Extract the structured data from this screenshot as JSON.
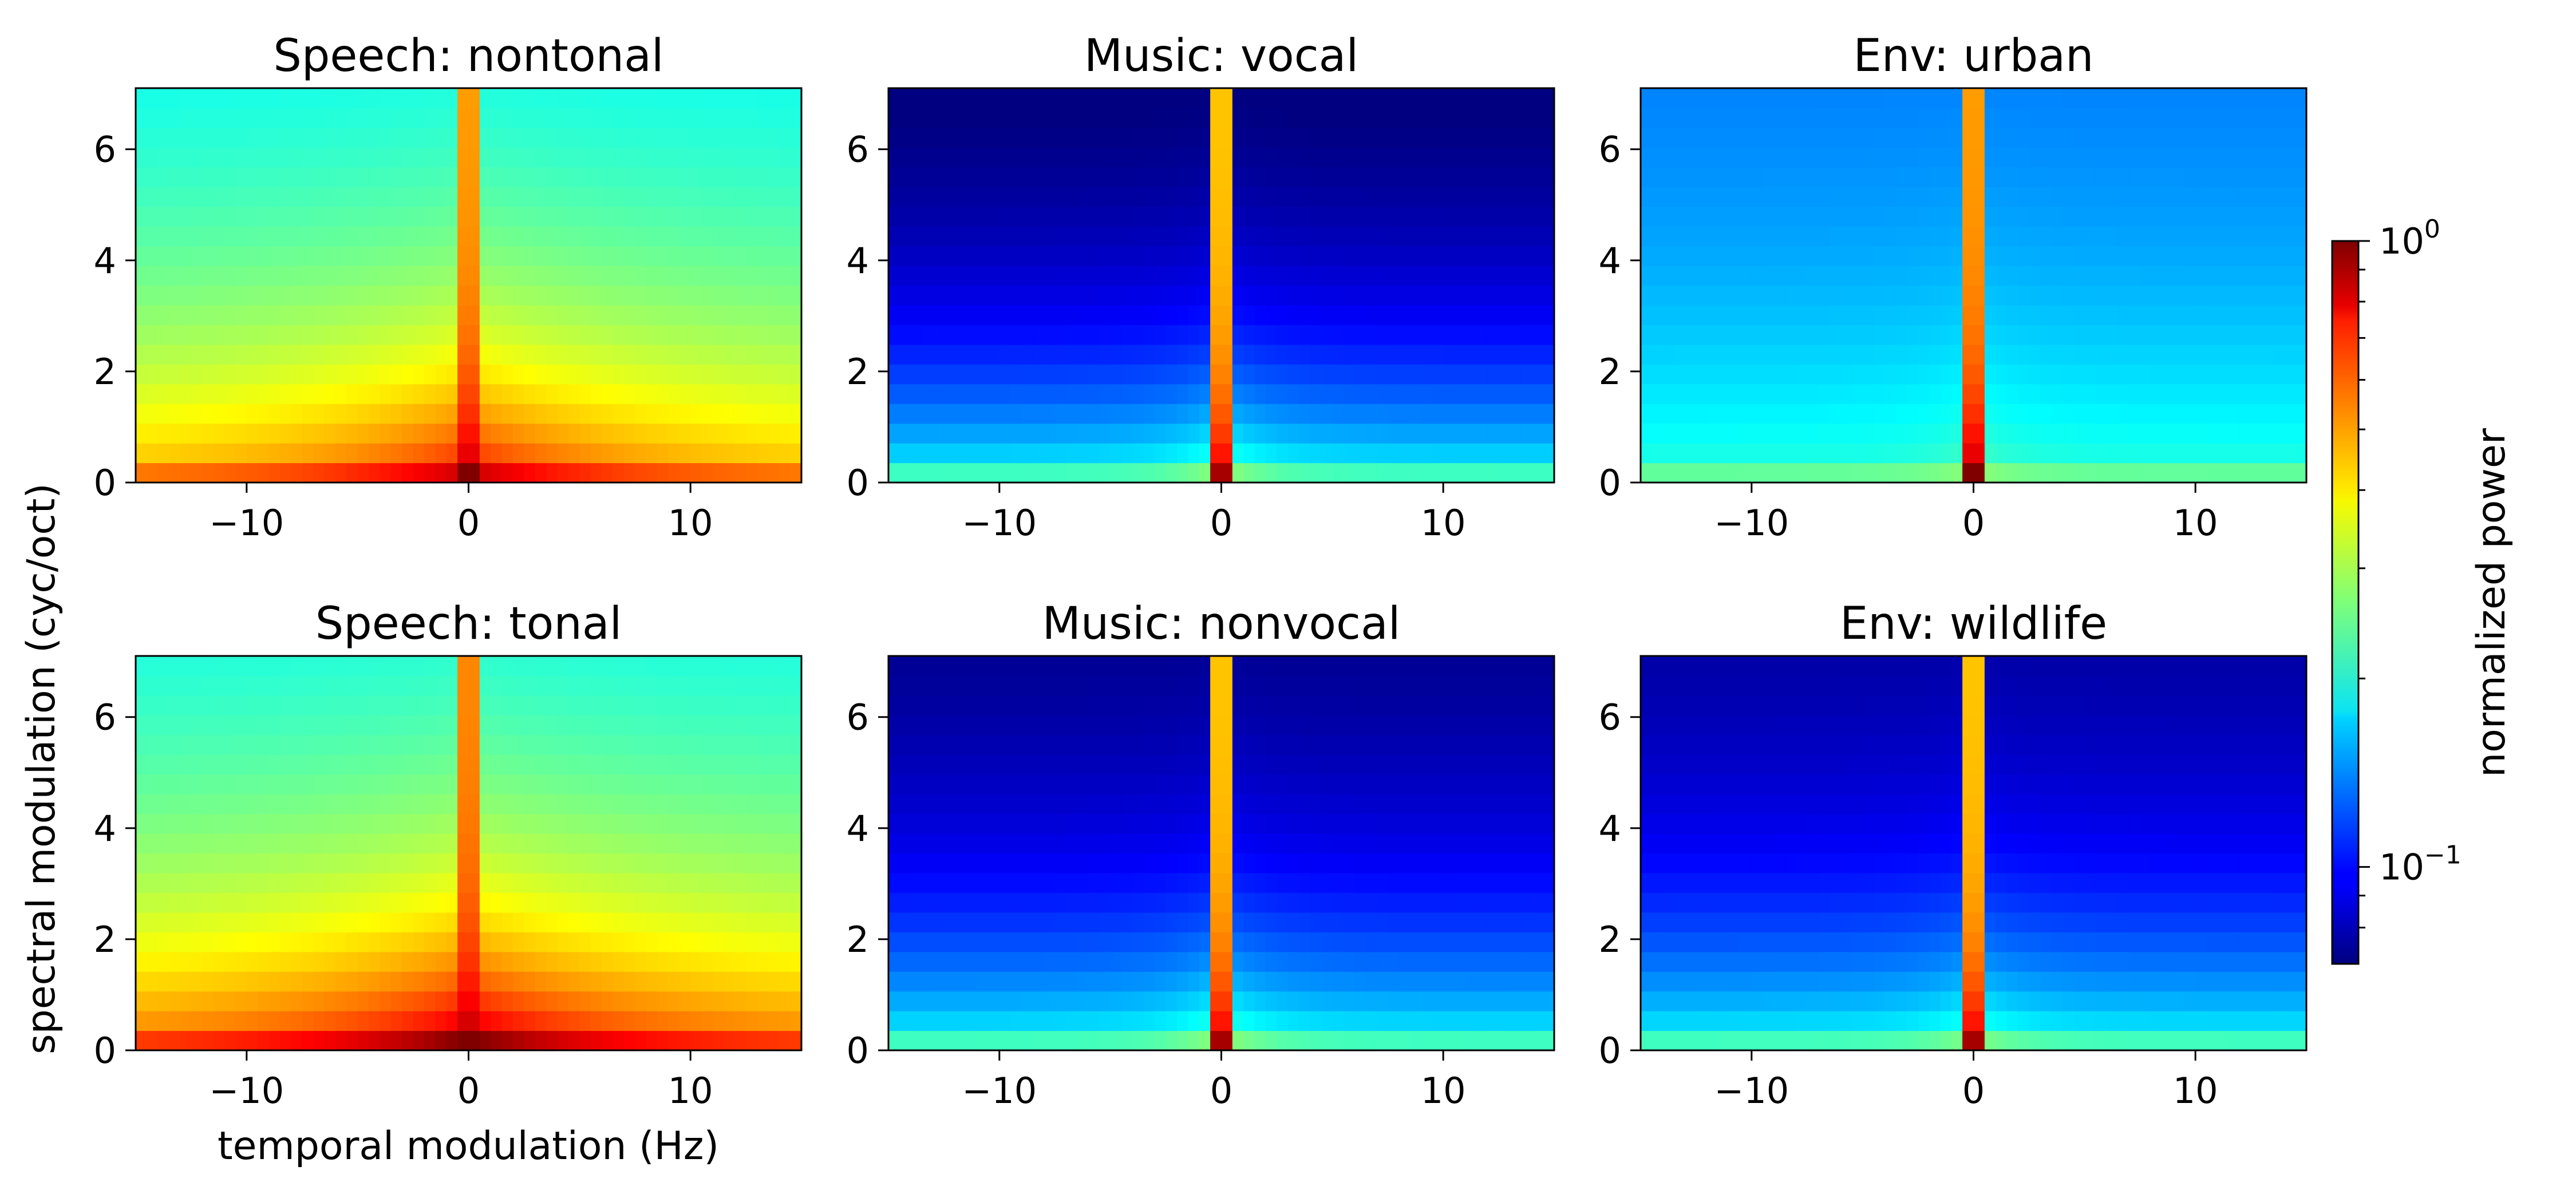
{
  "chart_data": {
    "type": "heatmap",
    "xlabel": "temporal modulation (Hz)",
    "ylabel": "spectral modulation (cyc/oct)",
    "xlim": [
      -15,
      15
    ],
    "ylim": [
      0,
      7.1
    ],
    "x_ticks": [
      -10,
      0,
      10
    ],
    "x_tick_labels": [
      "−10",
      "0",
      "10"
    ],
    "y_ticks": [
      0,
      2,
      4,
      6
    ],
    "y_tick_labels": [
      "0",
      "2",
      "4",
      "6"
    ],
    "spectral_bins": 20,
    "temporal_bins": 60,
    "colormap": "jet",
    "colorbar": {
      "label": "normalized power",
      "scale": "log",
      "range": [
        0.07,
        1.0
      ],
      "major_ticks": [
        {
          "value": 1.0,
          "base": "10",
          "exp": "0"
        },
        {
          "value": 0.1,
          "base": "10",
          "exp": "−1"
        }
      ]
    },
    "panels": [
      {
        "title": "Speech: nontonal",
        "row": 0,
        "col": 0,
        "base_low_y": 0.68,
        "base_high_y": 0.32,
        "y_decay": 4.5,
        "temporal_falloff": 0.22,
        "temporal_width": 8,
        "center_line": 0.72,
        "center_width": 0.5
      },
      {
        "title": "Music: vocal",
        "row": 0,
        "col": 1,
        "base_low_y": 0.4,
        "base_high_y": -0.05,
        "y_decay": 3.0,
        "temporal_falloff": 0.1,
        "temporal_width": 2,
        "center_line": 0.68,
        "center_width": 0.4
      },
      {
        "title": "Env: urban",
        "row": 0,
        "col": 2,
        "base_low_y": 0.42,
        "base_high_y": 0.22,
        "y_decay": 4.0,
        "temporal_falloff": 0.05,
        "temporal_width": 2,
        "center_line": 0.72,
        "center_width": 0.4
      },
      {
        "title": "Speech: tonal",
        "row": 1,
        "col": 0,
        "base_low_y": 0.74,
        "base_high_y": 0.32,
        "y_decay": 4.5,
        "temporal_falloff": 0.24,
        "temporal_width": 8,
        "center_line": 0.74,
        "center_width": 0.5
      },
      {
        "title": "Music: nonvocal",
        "row": 1,
        "col": 1,
        "base_low_y": 0.4,
        "base_high_y": -0.02,
        "y_decay": 3.0,
        "temporal_falloff": 0.1,
        "temporal_width": 2,
        "center_line": 0.68,
        "center_width": 0.4
      },
      {
        "title": "Env: wildlife",
        "row": 1,
        "col": 2,
        "base_low_y": 0.4,
        "base_high_y": 0.0,
        "y_decay": 3.0,
        "temporal_falloff": 0.08,
        "temporal_width": 2,
        "center_line": 0.68,
        "center_width": 0.4
      }
    ]
  }
}
